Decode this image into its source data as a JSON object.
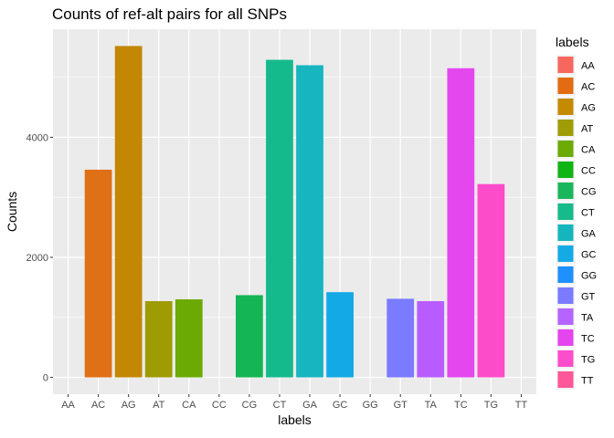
{
  "chart_data": {
    "type": "bar",
    "title": "Counts of ref-alt pairs for all SNPs",
    "xlabel": "labels",
    "ylabel": "Counts",
    "categories": [
      "AA",
      "AC",
      "AG",
      "AT",
      "CA",
      "CC",
      "CG",
      "CT",
      "GA",
      "GC",
      "GG",
      "GT",
      "TA",
      "TC",
      "TG",
      "TT"
    ],
    "values": [
      0,
      3460,
      5520,
      1270,
      1300,
      0,
      1370,
      5290,
      5200,
      1420,
      0,
      1310,
      1270,
      5150,
      3220,
      0
    ],
    "colors": [
      "#F8766D",
      "#E58700",
      "#C99800",
      "#A3A500",
      "#6BB100",
      "#00BA38",
      "#00BF7D",
      "#00C0AF",
      "#00BCD8",
      "#00B0F6",
      "#619CFF",
      "#B983FF",
      "#E76BF3",
      "#FD61D1",
      "#FF67A4",
      "#FF6C91"
    ],
    "bar_colors_rendered": [
      "#F8766D",
      "#E07016",
      "#C38703",
      "#9E9B05",
      "#6BAA05",
      "#00BA38",
      "#13B554",
      "#15BA8C",
      "#17B5C0",
      "#12A9E6",
      "#1E90FF",
      "#7B7BFF",
      "#B85CFF",
      "#E447EE",
      "#FC4CC9",
      "#FF5C9C"
    ],
    "yticks": [
      0,
      2000,
      4000
    ],
    "ylim": [
      -280,
      5800
    ],
    "grid": true,
    "legend": {
      "title": "labels",
      "position": "right",
      "entries": [
        "AA",
        "AC",
        "AG",
        "AT",
        "CA",
        "CC",
        "CG",
        "CT",
        "GA",
        "GC",
        "GG",
        "GT",
        "TA",
        "TC",
        "TG",
        "TT"
      ],
      "swatch_colors": [
        "#F8675E",
        "#E36C13",
        "#C48A02",
        "#A09C06",
        "#6CAB04",
        "#10B414",
        "#1AB65C",
        "#17BA8A",
        "#15B5BE",
        "#15AAE4",
        "#1E90FF",
        "#7A7BFE",
        "#B664FF",
        "#E445EE",
        "#FC4DCC",
        "#FF5599"
      ]
    }
  }
}
